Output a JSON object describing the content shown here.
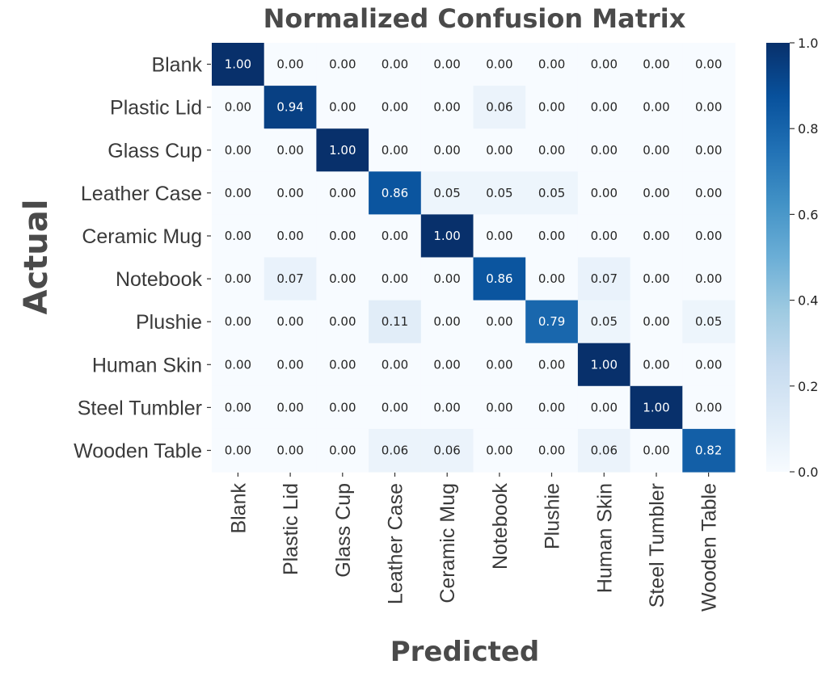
{
  "chart_data": {
    "type": "heatmap",
    "title": "Normalized Confusion Matrix",
    "xlabel": "Predicted",
    "ylabel": "Actual",
    "x_categories": [
      "Blank",
      "Plastic Lid",
      "Glass Cup",
      "Leather Case",
      "Ceramic Mug",
      "Notebook",
      "Plushie",
      "Human Skin",
      "Steel Tumbler",
      "Wooden Table"
    ],
    "y_categories": [
      "Blank",
      "Plastic Lid",
      "Glass Cup",
      "Leather Case",
      "Ceramic Mug",
      "Notebook",
      "Plushie",
      "Human Skin",
      "Steel Tumbler",
      "Wooden Table"
    ],
    "values": [
      [
        1.0,
        0.0,
        0.0,
        0.0,
        0.0,
        0.0,
        0.0,
        0.0,
        0.0,
        0.0
      ],
      [
        0.0,
        0.94,
        0.0,
        0.0,
        0.0,
        0.06,
        0.0,
        0.0,
        0.0,
        0.0
      ],
      [
        0.0,
        0.0,
        1.0,
        0.0,
        0.0,
        0.0,
        0.0,
        0.0,
        0.0,
        0.0
      ],
      [
        0.0,
        0.0,
        0.0,
        0.86,
        0.05,
        0.05,
        0.05,
        0.0,
        0.0,
        0.0
      ],
      [
        0.0,
        0.0,
        0.0,
        0.0,
        1.0,
        0.0,
        0.0,
        0.0,
        0.0,
        0.0
      ],
      [
        0.0,
        0.07,
        0.0,
        0.0,
        0.0,
        0.86,
        0.0,
        0.07,
        0.0,
        0.0
      ],
      [
        0.0,
        0.0,
        0.0,
        0.11,
        0.0,
        0.0,
        0.79,
        0.05,
        0.0,
        0.05
      ],
      [
        0.0,
        0.0,
        0.0,
        0.0,
        0.0,
        0.0,
        0.0,
        1.0,
        0.0,
        0.0
      ],
      [
        0.0,
        0.0,
        0.0,
        0.0,
        0.0,
        0.0,
        0.0,
        0.0,
        1.0,
        0.0
      ],
      [
        0.0,
        0.0,
        0.0,
        0.06,
        0.06,
        0.0,
        0.0,
        0.06,
        0.0,
        0.82
      ]
    ],
    "value_format": "0.00",
    "colormap": "Blues",
    "colorbar": {
      "range": [
        0.0,
        1.0
      ],
      "ticks": [
        0.0,
        0.2,
        0.4,
        0.6,
        0.8,
        1.0
      ],
      "tick_labels": [
        "0.0",
        "0.2",
        "0.4",
        "0.6",
        "0.8",
        "1.0"
      ]
    },
    "grid": false
  }
}
